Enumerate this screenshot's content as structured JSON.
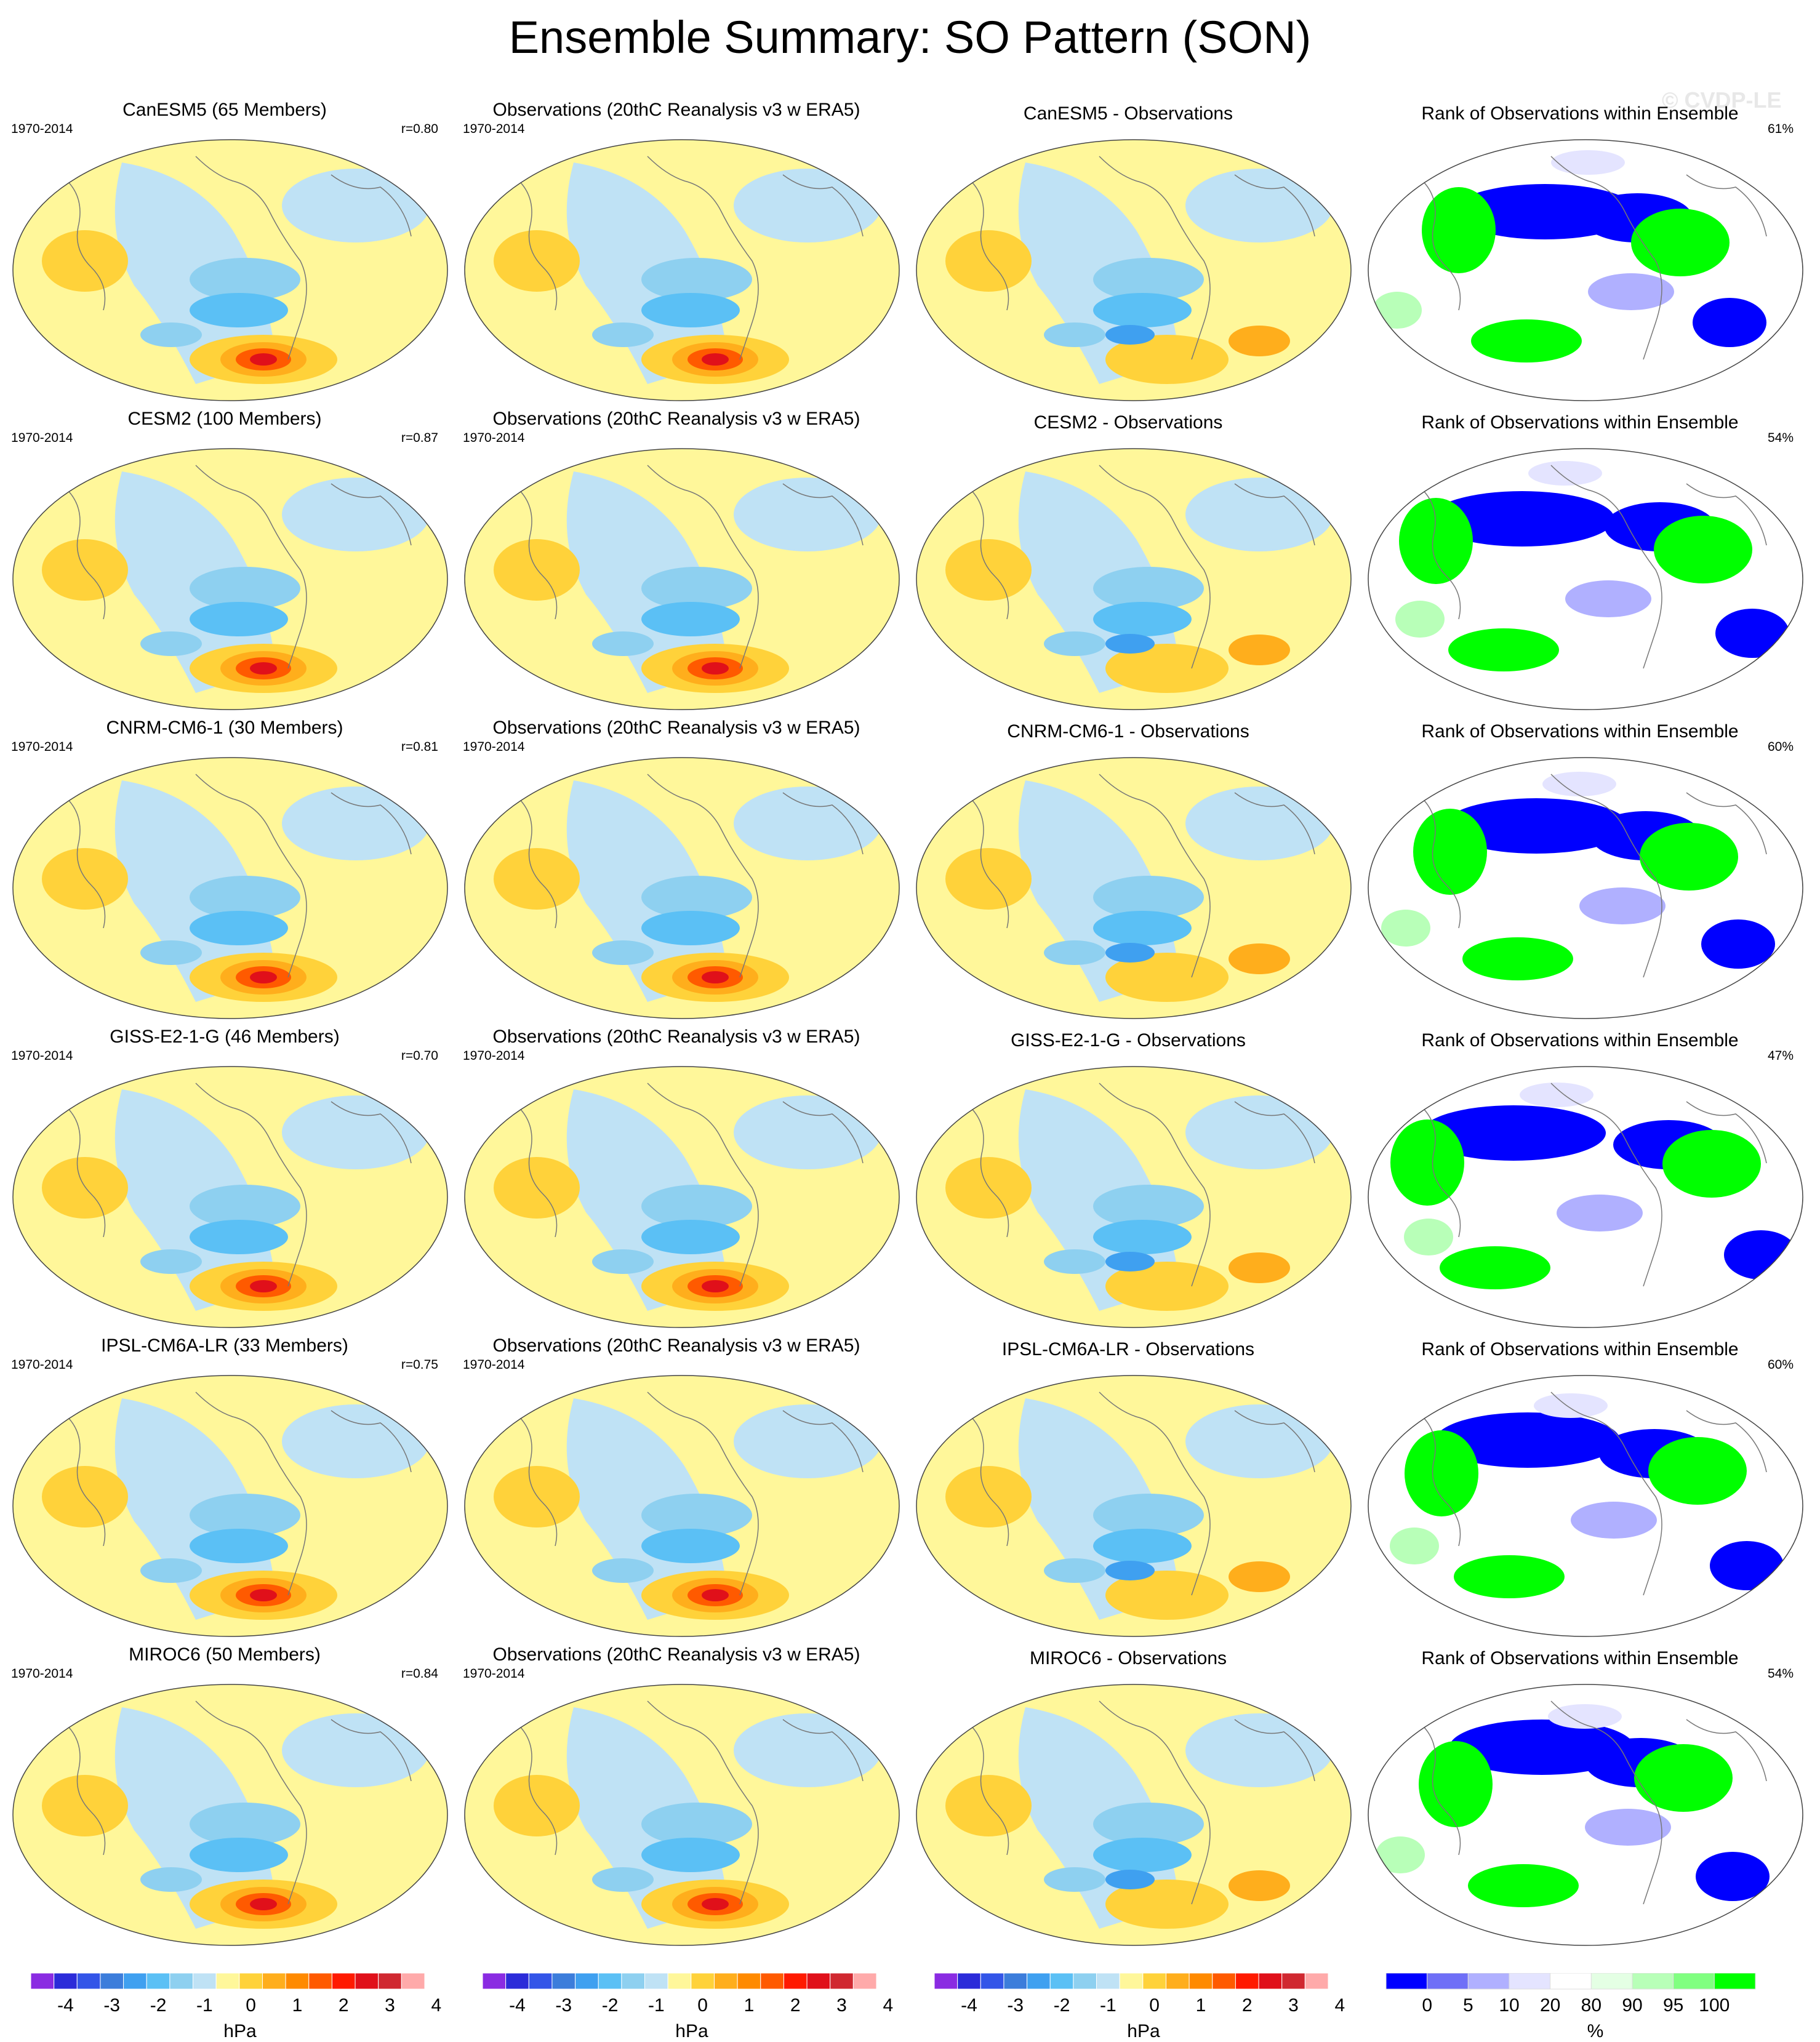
{
  "title": "Ensemble Summary: SO Pattern (SON)",
  "watermark": "© CVDP-LE",
  "period": "1970-2014",
  "obs_title": "Observations (20thC Reanalysis v3 w ERA5)",
  "rank_title": "Rank of Observations within Ensemble",
  "colors": {
    "neg": [
      "#8a2be2",
      "#2b2bd9",
      "#3355e8",
      "#3c7ddb",
      "#3fa0f0",
      "#5bc0f5",
      "#8ed0f0",
      "#bfe2f5"
    ],
    "pos": [
      "#fff79a",
      "#ffd23a",
      "#ffae1c",
      "#ff8a00",
      "#ff5a00",
      "#ff1a00",
      "#e0101a",
      "#d02830",
      "#ffaaaa"
    ],
    "rank": [
      "#0000ff",
      "#6f6ff7",
      "#b0b0ff",
      "#e4e4ff",
      "#ffffff",
      "#e4ffe4",
      "#b8ffb8",
      "#80ff80",
      "#00ff00"
    ],
    "land": "#777777",
    "ocean_bg": "#bfe2f5",
    "pos_bg": "#fff79a"
  },
  "chart_data": [
    {
      "type": "heatmap",
      "model": "CanESM5",
      "title": "CanESM5 (65 Members)",
      "corr": "r=0.80",
      "diff_title": "CanESM5 - Observations",
      "rank_pct": "61%"
    },
    {
      "type": "heatmap",
      "model": "CESM2",
      "title": "CESM2 (100 Members)",
      "corr": "r=0.87",
      "diff_title": "CESM2 - Observations",
      "rank_pct": "54%"
    },
    {
      "type": "heatmap",
      "model": "CNRM-CM6-1",
      "title": "CNRM-CM6-1 (30 Members)",
      "corr": "r=0.81",
      "diff_title": "CNRM-CM6-1 - Observations",
      "rank_pct": "60%"
    },
    {
      "type": "heatmap",
      "model": "GISS-E2-1-G",
      "title": "GISS-E2-1-G (46 Members)",
      "corr": "r=0.70",
      "diff_title": "GISS-E2-1-G - Observations",
      "rank_pct": "47%"
    },
    {
      "type": "heatmap",
      "model": "IPSL-CM6A-LR",
      "title": "IPSL-CM6A-LR (33 Members)",
      "corr": "r=0.75",
      "diff_title": "IPSL-CM6A-LR - Observations",
      "rank_pct": "60%"
    },
    {
      "type": "heatmap",
      "model": "MIROC6",
      "title": "MIROC6 (50 Members)",
      "corr": "r=0.84",
      "diff_title": "MIROC6 - Observations",
      "rank_pct": "54%"
    }
  ],
  "colorbar_hpa": {
    "unit": "hPa",
    "ticks": [
      "-4",
      "-3",
      "-2",
      "-1",
      "0",
      "1",
      "2",
      "3",
      "4"
    ],
    "levels": [
      -4.5,
      -4,
      -3.5,
      -3,
      -2.5,
      -2,
      -1.5,
      -1,
      -0.5,
      0,
      0.5,
      1,
      1.5,
      2,
      2.5,
      3,
      3.5,
      4,
      4.5
    ]
  },
  "colorbar_rank": {
    "unit": "%",
    "ticks": [
      "0",
      "5",
      "10",
      "20",
      "80",
      "90",
      "95",
      "100"
    ]
  }
}
